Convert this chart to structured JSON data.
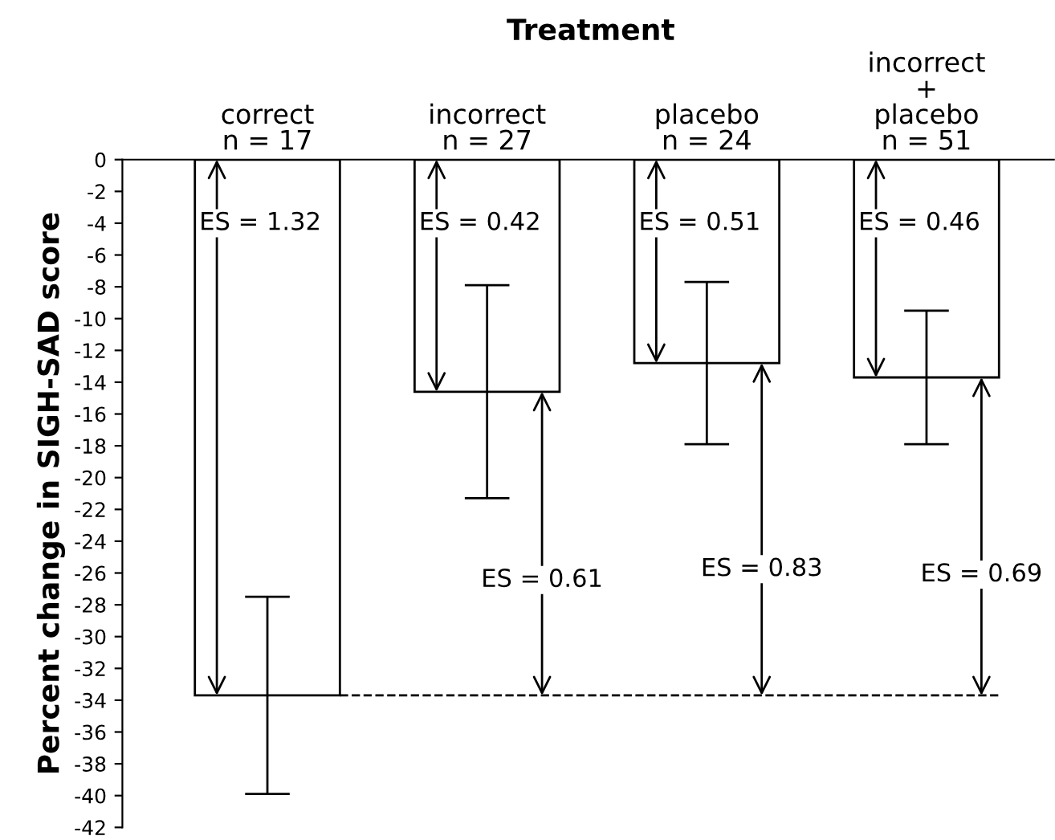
{
  "chart_data": {
    "type": "bar",
    "title": "Treatment",
    "ylabel": "Percent change in SIGH-SAD score",
    "categories": [
      "correct\nn = 17",
      "incorrect\nn = 27",
      "placebo\nn = 24",
      "incorrect\n+\nplacebo\nn = 51"
    ],
    "values": [
      -33.7,
      -14.6,
      -12.8,
      -13.7
    ],
    "errors": [
      6.2,
      6.7,
      5.1,
      4.2
    ],
    "color": "#ffffff",
    "ylim": [
      -42,
      0
    ],
    "yticks": [
      0,
      -2,
      -4,
      -6,
      -8,
      -10,
      -12,
      -14,
      -16,
      -18,
      -20,
      -22,
      -24,
      -26,
      -28,
      -30,
      -32,
      -34,
      -36,
      -38,
      -40,
      -42
    ],
    "ref_lines": [
      {
        "axis": "y",
        "value": -33.7,
        "label": null,
        "line_style": "dashed",
        "color": "#000000"
      }
    ],
    "annotations": [
      "ES = 1.32",
      "ES = 0.42",
      "ES = 0.51",
      "ES = 0.46",
      "ES = 0.61",
      "ES = 0.83",
      "ES = 0.69"
    ],
    "grid": false
  }
}
